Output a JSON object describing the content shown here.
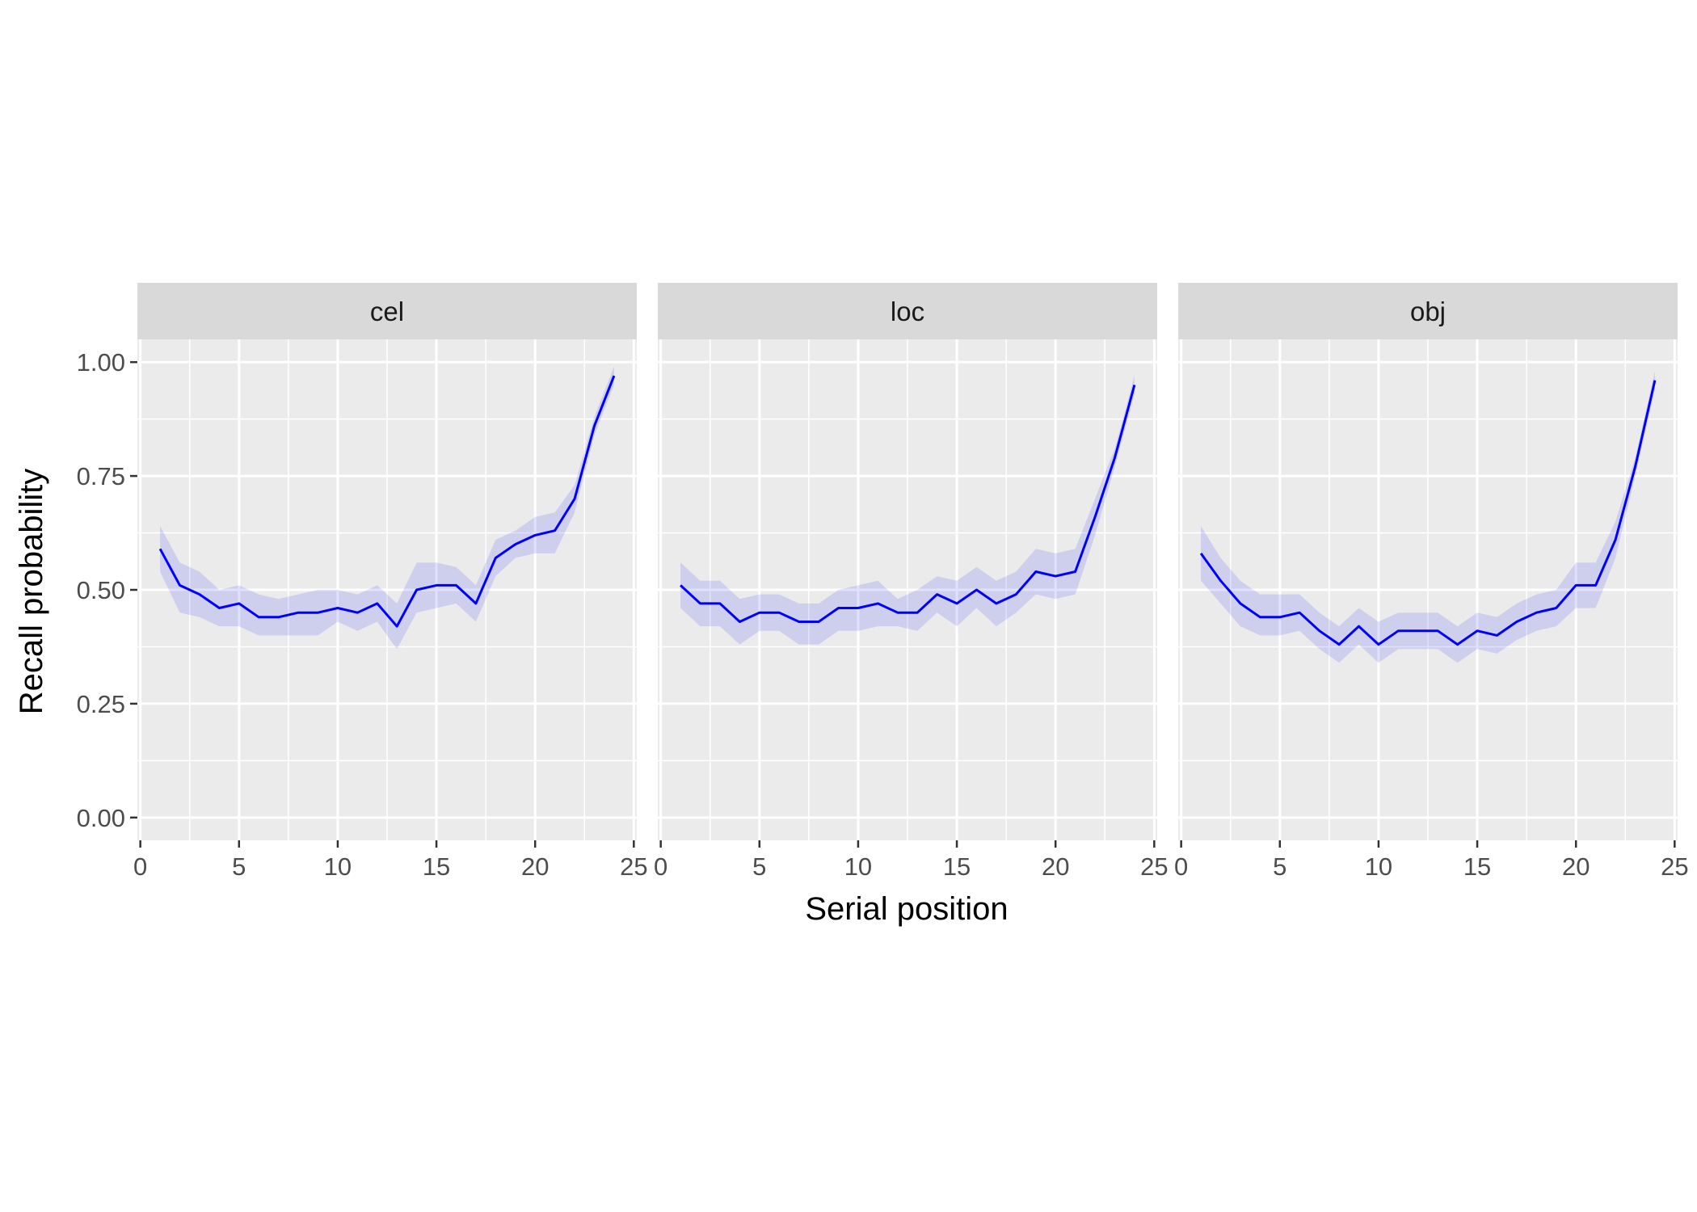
{
  "colors": {
    "line": "#0000FF",
    "ribbon": "#0000FF",
    "panel_bg": "#EBEBEB",
    "strip_bg": "#D9D9D9",
    "grid": "#FFFFFF",
    "text": "#4D4D4D"
  },
  "chart_data": {
    "type": "line",
    "xlabel": "Serial position",
    "ylabel": "Recall probability",
    "xlim": [
      0,
      25
    ],
    "ylim": [
      0,
      1
    ],
    "x_ticks": [
      "0",
      "5",
      "10",
      "15",
      "20",
      "25"
    ],
    "y_ticks": [
      "0.00",
      "0.25",
      "0.50",
      "0.75",
      "1.00"
    ],
    "grid": true,
    "legend": "none",
    "x": [
      1,
      2,
      3,
      4,
      5,
      6,
      7,
      8,
      9,
      10,
      11,
      12,
      13,
      14,
      15,
      16,
      17,
      18,
      19,
      20,
      21,
      22,
      23,
      24
    ],
    "panels": [
      {
        "label": "cel",
        "values": [
          0.59,
          0.51,
          0.49,
          0.46,
          0.47,
          0.44,
          0.44,
          0.45,
          0.45,
          0.46,
          0.45,
          0.47,
          0.42,
          0.5,
          0.51,
          0.51,
          0.47,
          0.57,
          0.6,
          0.62,
          0.63,
          0.7,
          0.86,
          0.97
        ],
        "lower": [
          0.54,
          0.45,
          0.44,
          0.42,
          0.42,
          0.4,
          0.4,
          0.4,
          0.4,
          0.43,
          0.41,
          0.43,
          0.37,
          0.45,
          0.46,
          0.47,
          0.43,
          0.53,
          0.57,
          0.58,
          0.58,
          0.67,
          0.84,
          0.95
        ],
        "upper": [
          0.64,
          0.56,
          0.54,
          0.5,
          0.51,
          0.49,
          0.48,
          0.49,
          0.5,
          0.5,
          0.49,
          0.51,
          0.47,
          0.56,
          0.56,
          0.55,
          0.51,
          0.61,
          0.63,
          0.66,
          0.67,
          0.73,
          0.88,
          0.99
        ]
      },
      {
        "label": "loc",
        "values": [
          0.51,
          0.47,
          0.47,
          0.43,
          0.45,
          0.45,
          0.43,
          0.43,
          0.46,
          0.46,
          0.47,
          0.45,
          0.45,
          0.49,
          0.47,
          0.5,
          0.47,
          0.49,
          0.54,
          0.53,
          0.54,
          0.66,
          0.79,
          0.95
        ],
        "lower": [
          0.46,
          0.42,
          0.42,
          0.38,
          0.41,
          0.41,
          0.38,
          0.38,
          0.41,
          0.41,
          0.42,
          0.42,
          0.41,
          0.45,
          0.42,
          0.46,
          0.42,
          0.45,
          0.49,
          0.48,
          0.49,
          0.62,
          0.77,
          0.93
        ],
        "upper": [
          0.56,
          0.52,
          0.52,
          0.48,
          0.49,
          0.49,
          0.47,
          0.47,
          0.5,
          0.51,
          0.52,
          0.48,
          0.5,
          0.53,
          0.52,
          0.55,
          0.52,
          0.54,
          0.59,
          0.58,
          0.59,
          0.7,
          0.81,
          0.97
        ]
      },
      {
        "label": "obj",
        "values": [
          0.58,
          0.52,
          0.47,
          0.44,
          0.44,
          0.45,
          0.41,
          0.38,
          0.42,
          0.38,
          0.41,
          0.41,
          0.41,
          0.38,
          0.41,
          0.4,
          0.43,
          0.45,
          0.46,
          0.51,
          0.51,
          0.61,
          0.77,
          0.96
        ],
        "lower": [
          0.52,
          0.47,
          0.42,
          0.4,
          0.4,
          0.41,
          0.37,
          0.34,
          0.38,
          0.34,
          0.37,
          0.37,
          0.37,
          0.34,
          0.37,
          0.36,
          0.39,
          0.41,
          0.42,
          0.46,
          0.46,
          0.57,
          0.75,
          0.94
        ],
        "upper": [
          0.64,
          0.57,
          0.52,
          0.49,
          0.49,
          0.49,
          0.45,
          0.42,
          0.46,
          0.43,
          0.45,
          0.45,
          0.45,
          0.42,
          0.45,
          0.44,
          0.47,
          0.49,
          0.5,
          0.56,
          0.56,
          0.65,
          0.79,
          0.98
        ]
      }
    ]
  }
}
